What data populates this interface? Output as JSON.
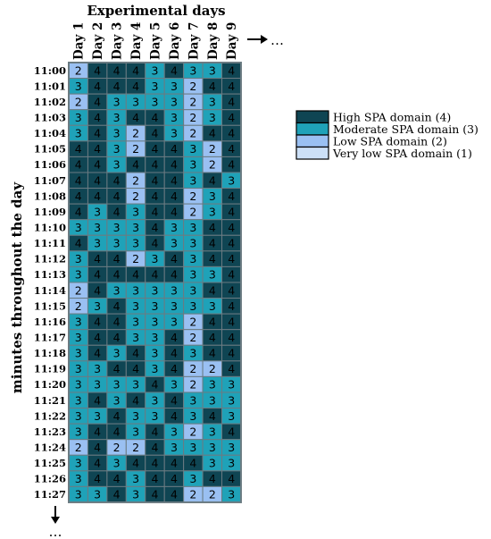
{
  "chart_data": {
    "type": "heatmap",
    "title": "Experimental days",
    "ylabel": "minutes throughout the day",
    "x_continuation": "…",
    "y_continuation": "…",
    "x": [
      "Day 1",
      "Day 2",
      "Day 3",
      "Day 4",
      "Day 5",
      "Day 6",
      "Day 7",
      "Day 8",
      "Day 9"
    ],
    "y": [
      "11:00",
      "11:01",
      "11:02",
      "11:03",
      "11:04",
      "11:05",
      "11:06",
      "11:07",
      "11:08",
      "11:09",
      "11:10",
      "11:11",
      "11:12",
      "11:13",
      "11:14",
      "11:15",
      "11:16",
      "11:17",
      "11:18",
      "11:19",
      "11:20",
      "11:21",
      "11:22",
      "11:23",
      "11:24",
      "11:25",
      "11:26",
      "11:27"
    ],
    "values": [
      [
        2,
        4,
        4,
        4,
        3,
        4,
        3,
        3,
        4
      ],
      [
        3,
        4,
        4,
        4,
        3,
        3,
        2,
        4,
        4
      ],
      [
        2,
        4,
        3,
        3,
        3,
        3,
        2,
        3,
        4
      ],
      [
        3,
        4,
        3,
        4,
        4,
        3,
        2,
        3,
        4
      ],
      [
        3,
        4,
        3,
        2,
        4,
        3,
        2,
        4,
        4
      ],
      [
        4,
        4,
        3,
        2,
        4,
        4,
        3,
        2,
        4
      ],
      [
        4,
        4,
        3,
        4,
        4,
        4,
        3,
        2,
        4
      ],
      [
        4,
        4,
        4,
        2,
        4,
        4,
        3,
        4,
        3
      ],
      [
        4,
        4,
        4,
        2,
        4,
        4,
        2,
        3,
        4
      ],
      [
        4,
        3,
        4,
        3,
        4,
        4,
        2,
        3,
        4
      ],
      [
        3,
        3,
        3,
        3,
        4,
        3,
        3,
        4,
        4
      ],
      [
        4,
        3,
        3,
        3,
        4,
        3,
        3,
        4,
        4
      ],
      [
        3,
        4,
        4,
        2,
        3,
        4,
        3,
        4,
        4
      ],
      [
        3,
        4,
        4,
        4,
        4,
        4,
        3,
        3,
        4
      ],
      [
        2,
        4,
        3,
        3,
        3,
        3,
        3,
        4,
        4
      ],
      [
        2,
        3,
        4,
        3,
        3,
        3,
        3,
        3,
        4
      ],
      [
        3,
        4,
        4,
        3,
        3,
        3,
        2,
        4,
        4
      ],
      [
        3,
        4,
        4,
        3,
        3,
        4,
        2,
        4,
        4
      ],
      [
        3,
        4,
        3,
        4,
        3,
        4,
        3,
        4,
        4
      ],
      [
        3,
        3,
        4,
        4,
        3,
        4,
        2,
        2,
        4
      ],
      [
        3,
        3,
        3,
        3,
        4,
        3,
        2,
        3,
        3
      ],
      [
        3,
        4,
        3,
        4,
        3,
        4,
        3,
        3,
        3
      ],
      [
        3,
        3,
        4,
        3,
        3,
        4,
        3,
        4,
        3
      ],
      [
        3,
        4,
        4,
        3,
        4,
        3,
        2,
        3,
        4
      ],
      [
        2,
        4,
        2,
        2,
        4,
        3,
        3,
        3,
        3
      ],
      [
        3,
        4,
        3,
        4,
        4,
        4,
        4,
        3,
        3
      ],
      [
        3,
        4,
        4,
        3,
        4,
        4,
        3,
        4,
        4
      ],
      [
        3,
        3,
        4,
        3,
        4,
        4,
        2,
        2,
        3
      ]
    ],
    "legend_position": "right",
    "legend": [
      {
        "value": 4,
        "label": "High SPA domain (4)",
        "color": "#0f4553"
      },
      {
        "value": 3,
        "label": "Moderate SPA domain (3)",
        "color": "#1fa2b8"
      },
      {
        "value": 2,
        "label": "Low SPA domain (2)",
        "color": "#9ac0f2"
      },
      {
        "value": 1,
        "label": "Very low SPA domain (1)",
        "color": "#cce0f7"
      }
    ],
    "grid_line_color": "#6b7b82",
    "text_color": "#000000"
  }
}
